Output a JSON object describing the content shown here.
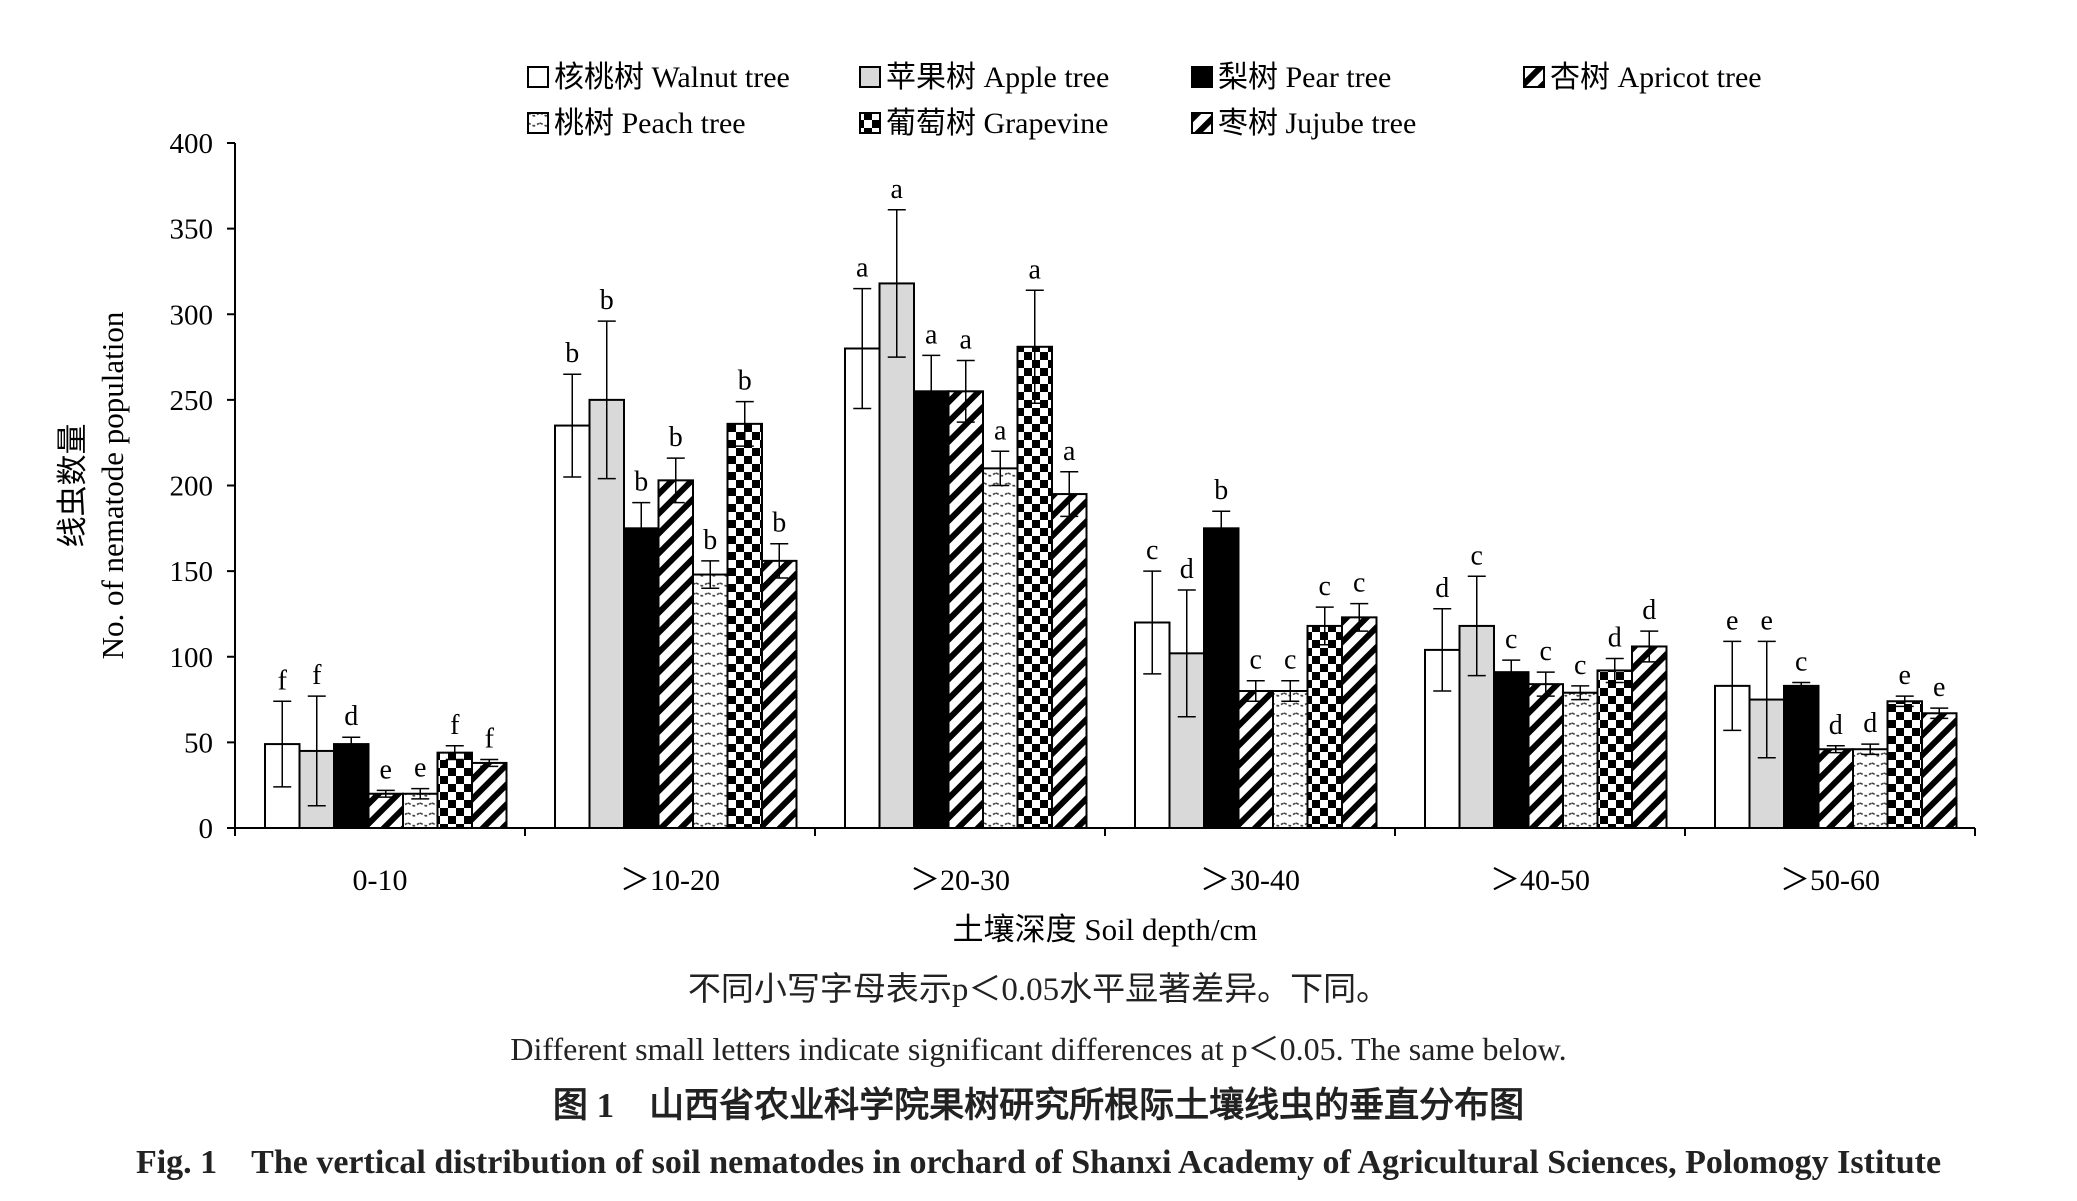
{
  "chart_data": {
    "type": "bar",
    "title": "",
    "ylabel_cn": "线虫数量",
    "ylabel_en": "No. of nematode population",
    "xlabel": "土壤深度 Soil depth/cm",
    "ylim": [
      0,
      400
    ],
    "yticks": [
      "0",
      "50",
      "100",
      "150",
      "200",
      "250",
      "300",
      "350",
      "400"
    ],
    "categories": [
      "0-10",
      "＞10-20",
      "＞20-30",
      "＞30-40",
      "＞40-50",
      "＞50-60"
    ],
    "legend_position": "top",
    "series": [
      {
        "name": "核桃树 Walnut tree",
        "pattern": "white",
        "values": [
          49,
          235,
          280,
          120,
          104,
          83
        ],
        "errors": [
          25,
          30,
          35,
          30,
          24,
          26
        ],
        "letters": [
          "f",
          "b",
          "a",
          "c",
          "d",
          "e"
        ]
      },
      {
        "name": "苹果树 Apple tree",
        "pattern": "gray",
        "values": [
          45,
          250,
          318,
          102,
          118,
          75
        ],
        "errors": [
          32,
          46,
          43,
          37,
          29,
          34
        ],
        "letters": [
          "f",
          "b",
          "a",
          "d",
          "c",
          "e"
        ]
      },
      {
        "name": "梨树 Pear tree",
        "pattern": "black",
        "values": [
          49,
          175,
          255,
          175,
          91,
          83
        ],
        "errors": [
          4,
          15,
          21,
          10,
          7,
          2
        ],
        "letters": [
          "d",
          "b",
          "a",
          "b",
          "c",
          "c"
        ]
      },
      {
        "name": "杏树 Apricot tree",
        "pattern": "hatch",
        "values": [
          20,
          203,
          255,
          80,
          84,
          46
        ],
        "errors": [
          2,
          13,
          18,
          6,
          7,
          2
        ],
        "letters": [
          "e",
          "b",
          "a",
          "c",
          "c",
          "d"
        ]
      },
      {
        "name": "桃树 Peach tree",
        "pattern": "dash",
        "values": [
          20,
          148,
          210,
          80,
          79,
          46
        ],
        "errors": [
          3,
          8,
          10,
          6,
          4,
          3
        ],
        "letters": [
          "e",
          "b",
          "a",
          "c",
          "c",
          "d"
        ]
      },
      {
        "name": "葡萄树 Grapevine",
        "pattern": "checker",
        "values": [
          44,
          236,
          281,
          118,
          92,
          74
        ],
        "errors": [
          4,
          13,
          33,
          11,
          7,
          3
        ],
        "letters": [
          "f",
          "b",
          "a",
          "c",
          "d",
          "e"
        ]
      },
      {
        "name": "枣树 Jujube tree",
        "pattern": "hatch",
        "values": [
          38,
          156,
          195,
          123,
          106,
          67
        ],
        "errors": [
          2,
          10,
          13,
          8,
          9,
          3
        ],
        "letters": [
          "f",
          "b",
          "a",
          "c",
          "d",
          "e"
        ]
      }
    ]
  },
  "notes": {
    "cn": "不同小写字母表示p＜0.05水平显著差异。下同。",
    "en": "Different small letters indicate significant differences at p＜0.05. The same below."
  },
  "caption": {
    "cn": "图 1　山西省农业科学院果树研究所根际土壤线虫的垂直分布图",
    "en": "Fig. 1　The vertical distribution of soil nematodes in orchard of Shanxi Academy of Agricultural Sciences, Polomogy Istitute"
  }
}
